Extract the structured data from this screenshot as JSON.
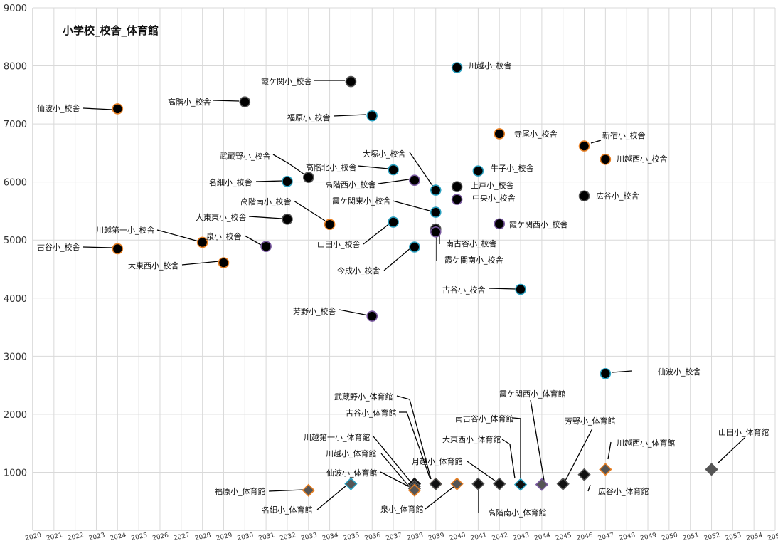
{
  "chart_data": {
    "type": "scatter",
    "title": "小学校_校舎_体育館",
    "xlabel": "",
    "ylabel": "",
    "xlim": [
      2020,
      2055
    ],
    "ylim": [
      0,
      9000
    ],
    "x_ticks": [
      "2020",
      "2021",
      "2022",
      "2023",
      "2024",
      "2025",
      "2026",
      "2027",
      "2028",
      "2029",
      "2030",
      "2031",
      "2032",
      "2033",
      "2034",
      "2035",
      "2036",
      "2037",
      "2038",
      "2039",
      "2040",
      "2041",
      "2042",
      "2043",
      "2044",
      "2045",
      "2046",
      "2047",
      "2048",
      "2049",
      "2050",
      "2051",
      "2052",
      "2053",
      "2054",
      "2055"
    ],
    "y_ticks": [
      "1000",
      "2000",
      "3000",
      "4000",
      "5000",
      "6000",
      "7000",
      "8000",
      "9000"
    ],
    "grid": true,
    "legend": "none",
    "colors": {
      "schoolhouse_fill": "#000000",
      "gym_fill": "#222222"
    },
    "series": [
      {
        "marker": "circle",
        "points": [
          {
            "label": "仙波小_校舎",
            "x": 2024,
            "y": 7260,
            "edge": "#e67e22"
          },
          {
            "label": "高階小_校舎",
            "x": 2030,
            "y": 7380,
            "edge": "#555555"
          },
          {
            "label": "霞ケ関小_校舎",
            "x": 2035,
            "y": 7730,
            "edge": "#555555"
          },
          {
            "label": "福原小_校舎",
            "x": 2036,
            "y": 7140,
            "edge": "#2aa0c0"
          },
          {
            "label": "川越小_校舎",
            "x": 2040,
            "y": 7970,
            "edge": "#2aa0c0"
          },
          {
            "label": "寺尾小_校舎",
            "x": 2042,
            "y": 6830,
            "edge": "#e67e22"
          },
          {
            "label": "新宿小_校舎",
            "x": 2046,
            "y": 6620,
            "edge": "#e67e22"
          },
          {
            "label": "川越西小_校舎",
            "x": 2047,
            "y": 6390,
            "edge": "#e67e22"
          },
          {
            "label": "武蔵野小_校舎",
            "x": 2033,
            "y": 6080,
            "edge": "#555555"
          },
          {
            "label": "高階北小_校舎",
            "x": 2037,
            "y": 6210,
            "edge": "#2aa0c0"
          },
          {
            "label": "名細小_校舎",
            "x": 2032,
            "y": 6010,
            "edge": "#2aa0c0"
          },
          {
            "label": "高階西小_校舎",
            "x": 2038,
            "y": 6030,
            "edge": "#7a5aa0"
          },
          {
            "label": "大塚小_校舎",
            "x": 2039,
            "y": 5860,
            "edge": "#2aa0c0"
          },
          {
            "label": "牛子小_校舎",
            "x": 2041,
            "y": 6190,
            "edge": "#2aa0c0"
          },
          {
            "label": "上戸小_校舎",
            "x": 2040,
            "y": 5920,
            "edge": "#555555"
          },
          {
            "label": "中央小_校舎",
            "x": 2040,
            "y": 5700,
            "edge": "#7a5aa0"
          },
          {
            "label": "広谷小_校舎",
            "x": 2046,
            "y": 5760,
            "edge": "#555555"
          },
          {
            "label": "霞ケ関東小_校舎",
            "x": 2039,
            "y": 5480,
            "edge": "#2aa0c0"
          },
          {
            "label": "高階南小_校舎",
            "x": 2034,
            "y": 5270,
            "edge": "#e67e22"
          },
          {
            "label": "大東東小_校舎",
            "x": 2032,
            "y": 5360,
            "edge": "#555555"
          },
          {
            "label": "霞ケ関西小_校舎",
            "x": 2042,
            "y": 5280,
            "edge": "#7a5aa0"
          },
          {
            "label": "川越第一小_校舎",
            "x": 2028,
            "y": 4960,
            "edge": "#e67e22"
          },
          {
            "label": "泉小_校舎",
            "x": 2031,
            "y": 4890,
            "edge": "#7a5aa0"
          },
          {
            "label": "山田小_校舎",
            "x": 2037,
            "y": 5310,
            "edge": "#2aa0c0"
          },
          {
            "label": "南古谷小_校舎",
            "x": 2039,
            "y": 5190,
            "edge": "#555555"
          },
          {
            "label": "霞ケ関南小_校舎",
            "x": 2039,
            "y": 5140,
            "edge": "#7a5aa0"
          },
          {
            "label": "古谷小_校舎",
            "x": 2024,
            "y": 4850,
            "edge": "#e67e22"
          },
          {
            "label": "今成小_校舎",
            "x": 2038,
            "y": 4880,
            "edge": "#2aa0c0"
          },
          {
            "label": "大東西小_校舎",
            "x": 2029,
            "y": 4610,
            "edge": "#e67e22"
          },
          {
            "label": "古谷小_校舎",
            "x": 2043,
            "y": 4150,
            "edge": "#2aa0c0"
          },
          {
            "label": "芳野小_校舎",
            "x": 2036,
            "y": 3690,
            "edge": "#7a5aa0"
          },
          {
            "label": "仙波小_校舎",
            "x": 2047,
            "y": 2700,
            "edge": "#2aa0c0"
          }
        ]
      },
      {
        "marker": "diamond",
        "points": [
          {
            "label": "福原小_体育館",
            "x": 2033,
            "y": 690,
            "fill": "#555555",
            "edge": "#e67e22"
          },
          {
            "label": "名細小_体育館",
            "x": 2035,
            "y": 800,
            "fill": "#555555",
            "edge": "#2aa0c0"
          },
          {
            "label": "川越第一小_体育館",
            "x": 2038,
            "y": 800,
            "fill": "#111111",
            "edge": "#111111"
          },
          {
            "label": "川越小_体育館",
            "x": 2038,
            "y": 760,
            "fill": "#111111",
            "edge": "#555555"
          },
          {
            "label": "仙波小_体育館",
            "x": 2038,
            "y": 720,
            "fill": "#333333",
            "edge": "#555555"
          },
          {
            "label": "泉小_体育館",
            "x": 2038,
            "y": 690,
            "fill": "#555555",
            "edge": "#e67e22"
          },
          {
            "label": "武蔵野小_体育館",
            "x": 2039,
            "y": 800,
            "fill": "#111111",
            "edge": "#e67e22"
          },
          {
            "label": "古谷小_体育館",
            "x": 2039,
            "y": 800,
            "fill": "#111111",
            "edge": "#555555"
          },
          {
            "label": "月越小_体育館",
            "x": 2040,
            "y": 800,
            "fill": "#555555",
            "edge": "#e67e22"
          },
          {
            "label": "高階南小_体育館",
            "x": 2041,
            "y": 800,
            "fill": "#111111",
            "edge": "#555555"
          },
          {
            "label": "大東西小_体育館",
            "x": 2042,
            "y": 800,
            "fill": "#111111",
            "edge": "#555555"
          },
          {
            "label": "南古谷小_体育館",
            "x": 2043,
            "y": 790,
            "fill": "#111111",
            "edge": "#2aa0c0"
          },
          {
            "label": "霞ケ関西小_体育館",
            "x": 2044,
            "y": 790,
            "fill": "#555555",
            "edge": "#7a5aa0"
          },
          {
            "label": "芳野小_体育館",
            "x": 2045,
            "y": 800,
            "fill": "#111111",
            "edge": "#555555"
          },
          {
            "label": "広谷小_体育館",
            "x": 2046,
            "y": 960,
            "fill": "#111111",
            "edge": "#555555"
          },
          {
            "label": "川越西小_体育館",
            "x": 2047,
            "y": 1050,
            "fill": "#555555",
            "edge": "#e67e22"
          },
          {
            "label": "山田小_体育館",
            "x": 2052,
            "y": 1050,
            "fill": "#555555",
            "edge": "#555555"
          }
        ]
      }
    ]
  }
}
